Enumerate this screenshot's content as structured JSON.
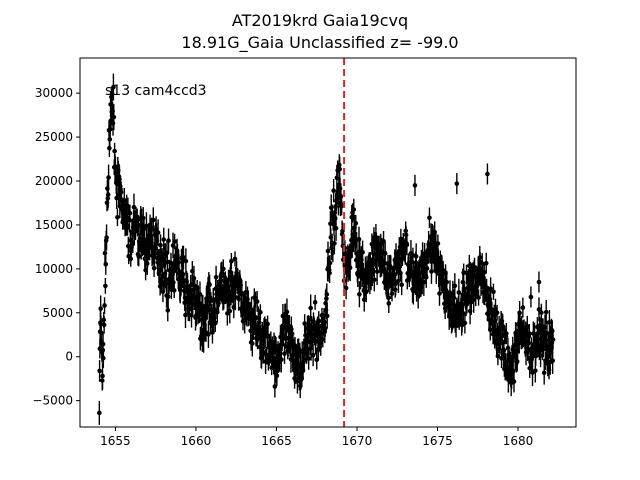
{
  "chart_data": {
    "type": "scatter",
    "title_line1": "AT2019krd  Gaia19cvq",
    "title_line2": "18.91G_Gaia Unclassified z= -99.0",
    "annotation": "s13 cam4ccd3",
    "xlabel": "",
    "ylabel": "",
    "xlim": [
      1652.8,
      1683.6
    ],
    "ylim": [
      -8000,
      34000
    ],
    "xticks": [
      1655,
      1660,
      1665,
      1670,
      1675,
      1680
    ],
    "xtick_labels": [
      "1655",
      "1660",
      "1665",
      "1670",
      "1675",
      "1680"
    ],
    "yticks": [
      -5000,
      0,
      5000,
      10000,
      15000,
      20000,
      25000,
      30000
    ],
    "ytick_labels": [
      "−5000",
      "0",
      "5000",
      "10000",
      "15000",
      "20000",
      "25000",
      "30000"
    ],
    "reference_line": {
      "x": 1669.2,
      "color": "#d62728",
      "style": "dashed"
    },
    "series_color": "#000000",
    "grid": false,
    "series": [
      {
        "x": [
          1654.0,
          1654.05,
          1654.1,
          1654.15,
          1654.2,
          1654.25,
          1654.4,
          1654.5,
          1654.6,
          1654.7,
          1654.8,
          1654.9,
          1655.0,
          1655.2,
          1655.4,
          1655.6,
          1655.8,
          1656.0,
          1656.3,
          1656.6,
          1656.9,
          1657.2,
          1657.5,
          1657.8,
          1658.1,
          1658.4,
          1658.7,
          1659.0,
          1659.3,
          1659.6,
          1659.9,
          1660.2,
          1660.5,
          1660.8,
          1661.1,
          1661.4,
          1661.7,
          1662.0,
          1662.3,
          1662.6,
          1662.9,
          1663.2,
          1663.5,
          1663.8,
          1664.1,
          1664.4,
          1664.7,
          1665.0,
          1665.3,
          1665.6,
          1665.9,
          1666.2,
          1666.5,
          1666.8,
          1667.1,
          1667.4,
          1667.7,
          1668.0,
          1668.3,
          1668.6,
          1668.8,
          1668.9,
          1669.0,
          1669.1,
          1669.2,
          1669.3,
          1669.4,
          1669.5,
          1669.6,
          1669.8,
          1670.0,
          1670.2,
          1670.4,
          1670.6,
          1670.9,
          1671.2,
          1671.5,
          1671.8,
          1672.1,
          1672.4,
          1672.7,
          1673.0,
          1673.3,
          1673.6,
          1673.9,
          1674.2,
          1674.5,
          1674.8,
          1675.1,
          1675.4,
          1675.7,
          1676.0,
          1676.3,
          1676.6,
          1676.9,
          1677.2,
          1677.5,
          1677.8,
          1678.1,
          1678.4,
          1678.7,
          1679.0,
          1679.3,
          1679.6,
          1679.9,
          1680.2,
          1680.5,
          1680.8,
          1681.1,
          1681.4,
          1681.7,
          1682.0,
          1682.2
        ],
        "y": [
          -5000,
          2500,
          4000,
          500,
          -1500,
          1000,
          11500,
          18000,
          22000,
          26500,
          29000,
          27000,
          21000,
          18500,
          17000,
          15500,
          14500,
          13000,
          15000,
          13500,
          12000,
          14000,
          12500,
          11000,
          10000,
          9000,
          10500,
          9500,
          8000,
          7000,
          6500,
          5000,
          4000,
          6000,
          5500,
          7000,
          8000,
          6500,
          7500,
          8500,
          6000,
          5000,
          3500,
          5000,
          2000,
          1000,
          500,
          -500,
          1500,
          2500,
          1000,
          0,
          -1000,
          1500,
          2500,
          3000,
          2000,
          4000,
          12000,
          16000,
          19000,
          21000,
          18000,
          14000,
          12000,
          10000,
          9500,
          11000,
          13000,
          15500,
          12500,
          10000,
          9000,
          8500,
          10000,
          11500,
          12000,
          9000,
          8000,
          10000,
          11000,
          12000,
          10500,
          8000,
          9500,
          11000,
          13000,
          12000,
          10000,
          7500,
          6000,
          5000,
          4500,
          6000,
          7500,
          9000,
          8000,
          10000,
          6500,
          4000,
          3000,
          2000,
          0,
          -1500,
          1000,
          2500,
          2000,
          -500,
          1500,
          3000,
          2000,
          1000,
          2500
        ],
        "yerr": 1200
      }
    ],
    "outliers": [
      {
        "x": 1673.6,
        "y": 19500
      },
      {
        "x": 1676.2,
        "y": 19700
      },
      {
        "x": 1678.1,
        "y": 20800
      },
      {
        "x": 1681.3,
        "y": 8500
      },
      {
        "x": 1680.8,
        "y": 6800
      }
    ]
  }
}
